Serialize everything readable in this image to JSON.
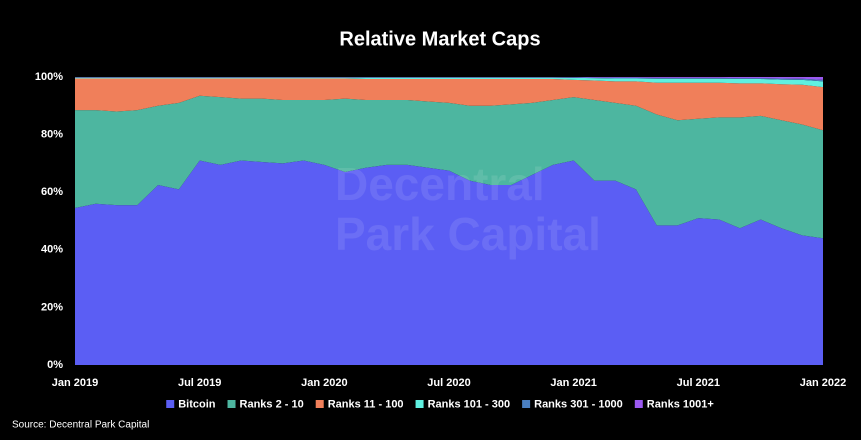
{
  "chart_data": {
    "type": "stacked_area",
    "title": "Relative Market Caps",
    "source": "Source: Decentral Park Capital",
    "watermark": [
      "Decentral",
      "Park Capital"
    ],
    "x": [
      "2019-01",
      "2019-02",
      "2019-03",
      "2019-04",
      "2019-05",
      "2019-06",
      "2019-07",
      "2019-08",
      "2019-09",
      "2019-10",
      "2019-11",
      "2019-12",
      "2020-01",
      "2020-02",
      "2020-03",
      "2020-04",
      "2020-05",
      "2020-06",
      "2020-07",
      "2020-08",
      "2020-09",
      "2020-10",
      "2020-11",
      "2020-12",
      "2021-01",
      "2021-02",
      "2021-03",
      "2021-04",
      "2021-05",
      "2021-06",
      "2021-07",
      "2021-08",
      "2021-09",
      "2021-10",
      "2021-11",
      "2021-12",
      "2022-01"
    ],
    "xticks": [
      {
        "value": "2019-01",
        "label": "Jan 2019"
      },
      {
        "value": "2019-07",
        "label": "Jul 2019"
      },
      {
        "value": "2020-01",
        "label": "Jan 2020"
      },
      {
        "value": "2020-07",
        "label": "Jul 2020"
      },
      {
        "value": "2021-01",
        "label": "Jan 2021"
      },
      {
        "value": "2021-07",
        "label": "Jul 2021"
      },
      {
        "value": "2022-01",
        "label": "Jan 2022"
      }
    ],
    "ylim": [
      0,
      100
    ],
    "yticks": [
      {
        "value": 0,
        "label": "0%"
      },
      {
        "value": 20,
        "label": "20%"
      },
      {
        "value": 40,
        "label": "40%"
      },
      {
        "value": 60,
        "label": "60%"
      },
      {
        "value": 80,
        "label": "80%"
      },
      {
        "value": 100,
        "label": "100%"
      }
    ],
    "series": [
      {
        "name": "Bitcoin",
        "color": "#5b5ef4",
        "values": [
          54.5,
          56,
          55.5,
          55.5,
          62.5,
          61,
          71,
          69.5,
          71,
          70.5,
          70,
          71,
          69.5,
          67,
          68.5,
          69.5,
          69.5,
          68.5,
          67.5,
          64,
          62.5,
          62.5,
          66,
          69.5,
          71,
          64,
          64,
          61,
          48.5,
          48.5,
          51,
          50.5,
          47.5,
          50.5,
          47.5,
          45,
          44
        ]
      },
      {
        "name": "Ranks 2 - 10",
        "color": "#4db6a0",
        "values": [
          34,
          32.5,
          32.5,
          33,
          27.5,
          30,
          22.5,
          23.5,
          21.5,
          22,
          22,
          21,
          22.5,
          25.5,
          23.5,
          22.5,
          22.5,
          23,
          23.5,
          26,
          27.5,
          28,
          25,
          22.5,
          22,
          28,
          27,
          29,
          38.5,
          36.5,
          34.5,
          35.5,
          38.5,
          36,
          37.5,
          38.5,
          37.5
        ]
      },
      {
        "name": "Ranks 11 - 100",
        "color": "#f07f5a",
        "values": [
          11,
          11,
          11.5,
          11,
          9.5,
          8.5,
          6,
          6.5,
          7,
          7,
          7.5,
          7.5,
          7.5,
          7,
          7.3,
          7.3,
          7.3,
          7.8,
          8.3,
          9.3,
          9.3,
          8.8,
          8.3,
          7.3,
          6,
          6.8,
          7.5,
          8.5,
          11,
          13,
          12.5,
          12,
          11.8,
          11.3,
          12.5,
          13.8,
          15
        ]
      },
      {
        "name": "Ranks 101 - 300",
        "color": "#5ff0e0",
        "values": [
          0.3,
          0.3,
          0.3,
          0.3,
          0.3,
          0.3,
          0.3,
          0.3,
          0.3,
          0.3,
          0.3,
          0.3,
          0.3,
          0.3,
          0.5,
          0.5,
          0.5,
          0.5,
          0.5,
          0.5,
          0.5,
          0.5,
          0.5,
          0.5,
          0.7,
          0.8,
          1,
          1,
          1.4,
          1.4,
          1.4,
          1.4,
          1.5,
          1.5,
          1.6,
          1.7,
          2
        ]
      },
      {
        "name": "Ranks 301 - 1000",
        "color": "#4a7fc0",
        "values": [
          0.1,
          0.1,
          0.1,
          0.1,
          0.1,
          0.1,
          0.1,
          0.1,
          0.1,
          0.1,
          0.1,
          0.1,
          0.1,
          0.1,
          0.1,
          0.1,
          0.1,
          0.1,
          0.1,
          0.1,
          0.1,
          0.1,
          0.1,
          0.1,
          0.2,
          0.2,
          0.3,
          0.3,
          0.3,
          0.3,
          0.3,
          0.3,
          0.3,
          0.3,
          0.4,
          0.4,
          0.5
        ]
      },
      {
        "name": "Ranks 1001+",
        "color": "#9b59f0",
        "values": [
          0.1,
          0.1,
          0.1,
          0.1,
          0.1,
          0.1,
          0.1,
          0.1,
          0.1,
          0.1,
          0.1,
          0.1,
          0.1,
          0.1,
          0.1,
          0.1,
          0.1,
          0.1,
          0.1,
          0.1,
          0.1,
          0.1,
          0.1,
          0.1,
          0.1,
          0.2,
          0.2,
          0.2,
          0.3,
          0.3,
          0.3,
          0.3,
          0.4,
          0.4,
          0.5,
          0.6,
          1
        ]
      }
    ]
  }
}
